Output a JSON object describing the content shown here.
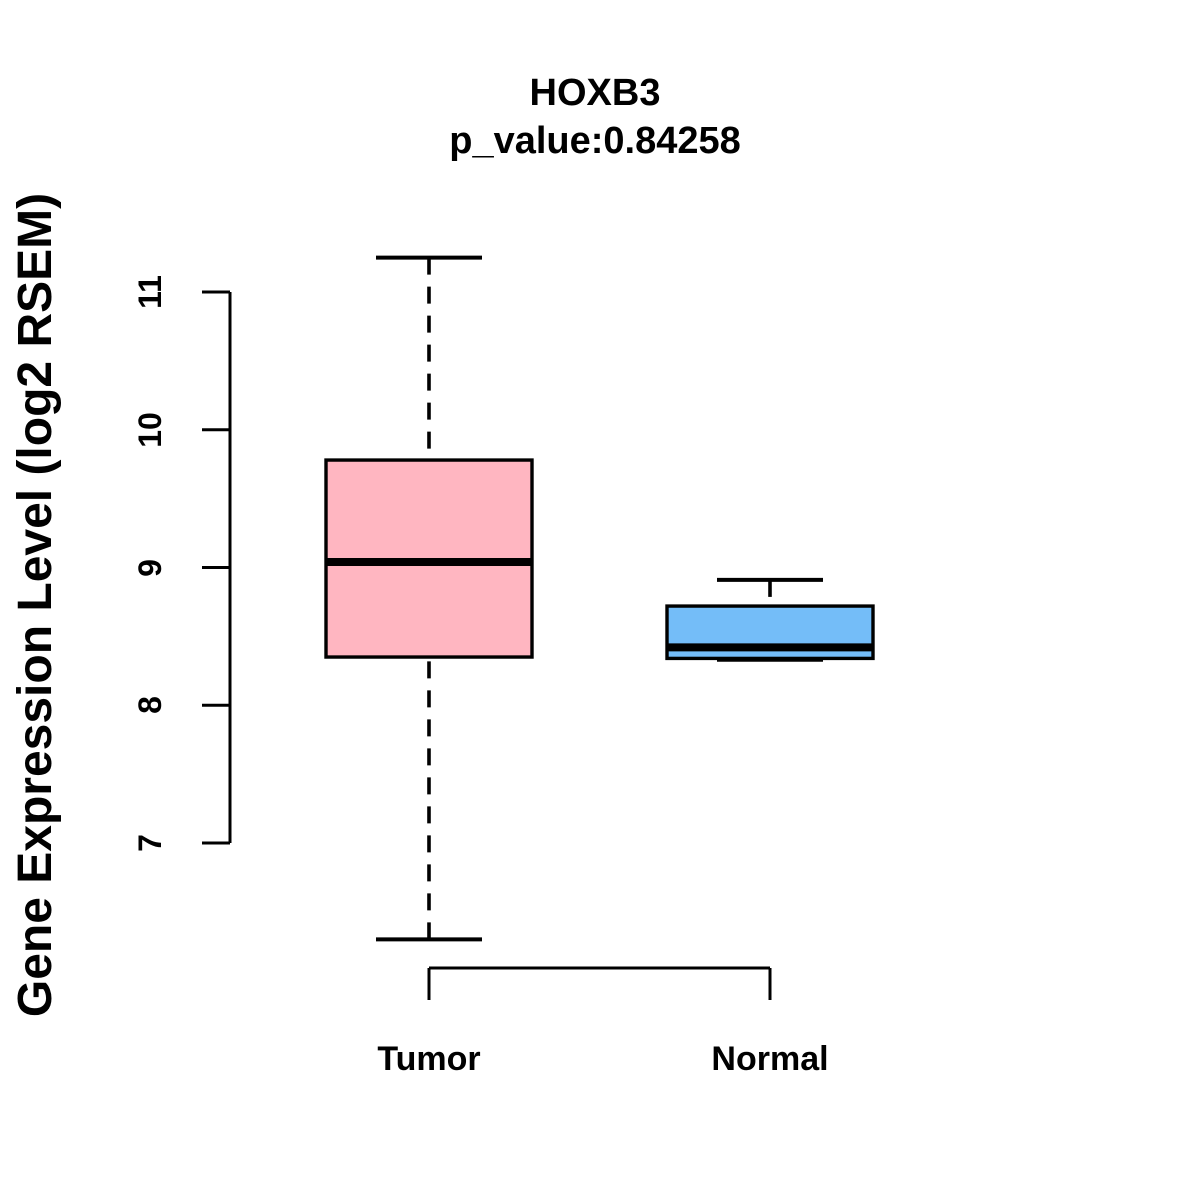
{
  "chart_data": {
    "type": "boxplot",
    "title": "HOXB3",
    "subtitle": "p_value:0.84258",
    "ylabel": "Gene Expression Level (log2 RSEM)",
    "xlabel": "",
    "yticks": [
      7,
      8,
      9,
      10,
      11
    ],
    "ytick_range": [
      7,
      11
    ],
    "grid": "off",
    "categories": [
      "Tumor",
      "Normal"
    ],
    "groups": [
      {
        "label": "Tumor",
        "color": "#FFB6C1",
        "stats": {
          "lower_whisker": 6.3,
          "q1": 8.35,
          "median": 9.04,
          "q3": 9.78,
          "upper_whisker": 11.25
        }
      },
      {
        "label": "Normal",
        "color": "#74BDF8",
        "stats": {
          "lower_whisker": 8.33,
          "q1": 8.34,
          "median": 8.42,
          "q3": 8.72,
          "upper_whisker": 8.91
        }
      }
    ],
    "colors": {
      "box_border": "#000000",
      "median": "#000000",
      "axis": "#000000",
      "text": "#000000",
      "background": "#FFFFFF"
    }
  }
}
